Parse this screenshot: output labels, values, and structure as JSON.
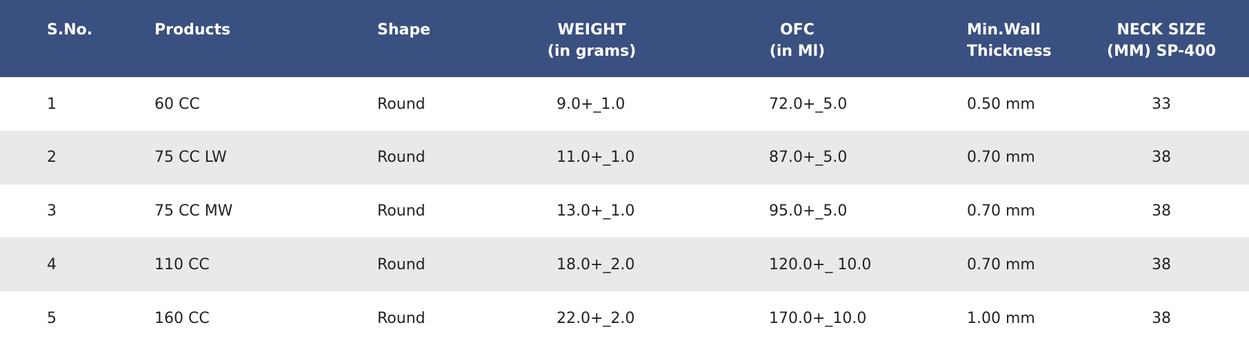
{
  "table": {
    "header": [
      [
        "S.No."
      ],
      [
        "Products"
      ],
      [
        "Shape"
      ],
      [
        "WEIGHT",
        "(in grams)"
      ],
      [
        "OFC",
        "(in Ml)"
      ],
      [
        "Min.Wall",
        "Thickness"
      ],
      [
        "NECK SIZE",
        "(MM) SP-400"
      ]
    ],
    "rows": [
      [
        "1",
        "60 CC",
        "Round",
        "9.0+_1.0",
        "72.0+_5.0",
        "0.50 mm",
        "33"
      ],
      [
        "2",
        "75 CC LW",
        "Round",
        "11.0+_1.0",
        "87.0+_5.0",
        "0.70 mm",
        "38"
      ],
      [
        "3",
        "75 CC MW",
        "Round",
        "13.0+_1.0",
        "95.0+_5.0",
        "0.70 mm",
        "38"
      ],
      [
        "4",
        "110 CC",
        "Round",
        "18.0+_2.0",
        "120.0+_ 10.0",
        "0.70 mm",
        "38"
      ],
      [
        "5",
        "160 CC",
        "Round",
        "22.0+_2.0",
        "170.0+_10.0",
        "1.00 mm",
        "38"
      ]
    ]
  }
}
